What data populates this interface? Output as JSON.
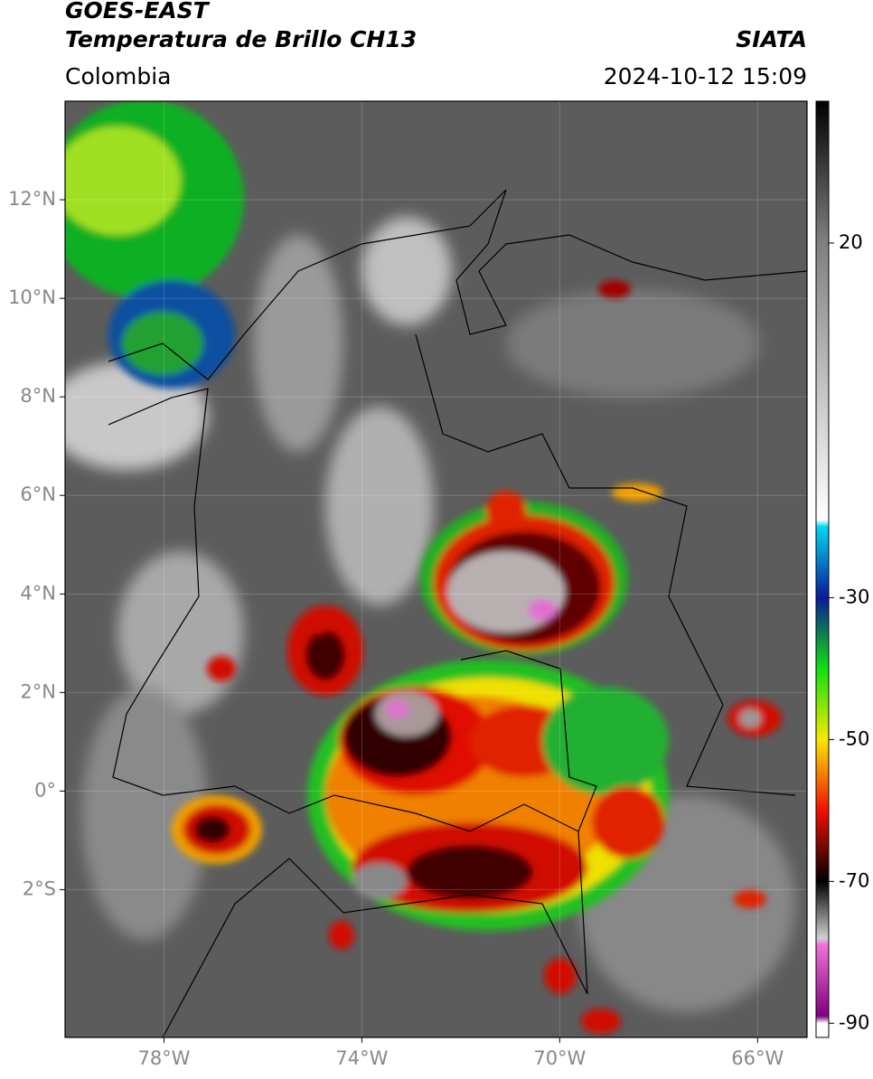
{
  "header": {
    "title1": "GOES-EAST",
    "title2": "Temperatura de Brillo CH13",
    "source": "SIATA",
    "region": "Colombia",
    "datetime": "2024-10-12 15:09"
  },
  "map": {
    "lon_range": [
      -80,
      -65
    ],
    "lat_range": [
      -5,
      14
    ],
    "grid": true,
    "lon_ticks": [
      {
        "value": -78,
        "label": "78°W"
      },
      {
        "value": -74,
        "label": "74°W"
      },
      {
        "value": -70,
        "label": "70°W"
      },
      {
        "value": -66,
        "label": "66°W"
      }
    ],
    "lat_ticks": [
      {
        "value": 12,
        "label": "12°N"
      },
      {
        "value": 10,
        "label": "10°N"
      },
      {
        "value": 8,
        "label": "8°N"
      },
      {
        "value": 6,
        "label": "6°N"
      },
      {
        "value": 4,
        "label": "4°N"
      },
      {
        "value": 2,
        "label": "2°N"
      },
      {
        "value": 0,
        "label": "0°"
      },
      {
        "value": -2,
        "label": "2°S"
      }
    ]
  },
  "colorbar": {
    "range": [
      -92,
      40
    ],
    "ticks": [
      20,
      -30,
      -50,
      -70,
      -90
    ],
    "colormap": [
      {
        "value": 40,
        "color": "#000000"
      },
      {
        "value": 20,
        "color": "#808080"
      },
      {
        "value": -19,
        "color": "#ffffff"
      },
      {
        "value": -20,
        "color": "#00d8f0"
      },
      {
        "value": -30,
        "color": "#0a1a9a"
      },
      {
        "value": -40,
        "color": "#10e010"
      },
      {
        "value": -50,
        "color": "#f8e800"
      },
      {
        "value": -60,
        "color": "#f01000"
      },
      {
        "value": -70,
        "color": "#000000"
      },
      {
        "value": -78,
        "color": "#d0d0d0"
      },
      {
        "value": -79,
        "color": "#f070d8"
      },
      {
        "value": -89,
        "color": "#800080"
      },
      {
        "value": -90,
        "color": "#ffffff"
      }
    ]
  }
}
